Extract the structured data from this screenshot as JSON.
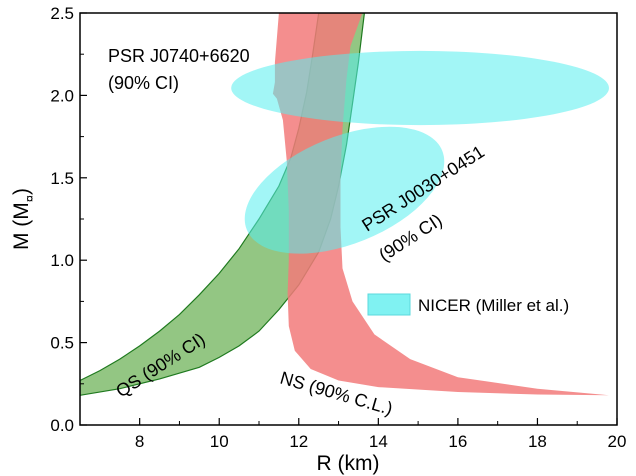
{
  "chart_data": {
    "type": "area",
    "xlabel": "R (km)",
    "ylabel_main": "M (M",
    "ylabel_sub": "¤",
    "ylabel_close": ")",
    "xlim": [
      6.5,
      20
    ],
    "ylim": [
      0,
      2.5
    ],
    "xticks": [
      8,
      10,
      12,
      14,
      16,
      18,
      20
    ],
    "yticks": [
      0.0,
      0.5,
      1.0,
      1.5,
      2.0,
      2.5
    ],
    "xtick_labels": [
      "8",
      "10",
      "12",
      "14",
      "16",
      "18",
      "20"
    ],
    "ytick_labels": [
      "0.0",
      "0.5",
      "1.0",
      "1.5",
      "2.0",
      "2.5"
    ],
    "grid": false,
    "legend": {
      "placement": "center-right",
      "label": "NICER (Miller et al.)"
    },
    "colors": {
      "ns": "#f27a7a",
      "qs": "#6fb35a",
      "qs_line": "#1f7a1f",
      "nicer": "#55eeee",
      "nicer_edge": "#5bd8dc",
      "qs_label": "#2e8b2e",
      "ns_label": "#f08080"
    },
    "series": [
      {
        "name": "QS (90% CI)",
        "role": "band",
        "left_edge": [
          [
            6.5,
            0.27
          ],
          [
            7.0,
            0.33
          ],
          [
            7.5,
            0.4
          ],
          [
            8.0,
            0.48
          ],
          [
            8.5,
            0.57
          ],
          [
            9.0,
            0.67
          ],
          [
            9.5,
            0.79
          ],
          [
            10.0,
            0.92
          ],
          [
            10.5,
            1.07
          ],
          [
            11.0,
            1.25
          ],
          [
            11.5,
            1.45
          ],
          [
            11.8,
            1.62
          ],
          [
            12.0,
            1.8
          ],
          [
            12.2,
            2.02
          ],
          [
            12.35,
            2.25
          ],
          [
            12.5,
            2.5
          ]
        ],
        "right_edge": [
          [
            6.5,
            0.18
          ],
          [
            7.5,
            0.22
          ],
          [
            8.5,
            0.28
          ],
          [
            9.5,
            0.35
          ],
          [
            10.0,
            0.41
          ],
          [
            10.5,
            0.48
          ],
          [
            11.0,
            0.57
          ],
          [
            11.5,
            0.7
          ],
          [
            12.0,
            0.85
          ],
          [
            12.5,
            1.05
          ],
          [
            12.8,
            1.25
          ],
          [
            13.0,
            1.45
          ],
          [
            13.2,
            1.7
          ],
          [
            13.35,
            1.95
          ],
          [
            13.5,
            2.2
          ],
          [
            13.65,
            2.5
          ]
        ]
      },
      {
        "name": "NS (90% C.L.)",
        "role": "band",
        "left_edge": [
          [
            11.35,
            2.01
          ],
          [
            11.45,
            1.98
          ],
          [
            11.6,
            1.85
          ],
          [
            11.7,
            1.6
          ],
          [
            11.75,
            1.3
          ],
          [
            11.75,
            1.0
          ],
          [
            11.72,
            0.8
          ],
          [
            11.75,
            0.6
          ],
          [
            11.9,
            0.45
          ],
          [
            12.3,
            0.34
          ],
          [
            13.0,
            0.27
          ],
          [
            14.0,
            0.23
          ],
          [
            16.0,
            0.2
          ],
          [
            18.0,
            0.185
          ],
          [
            19.8,
            0.18
          ]
        ],
        "right_edge": [
          [
            11.35,
            2.01
          ],
          [
            11.4,
            2.08
          ],
          [
            11.4,
            2.2
          ],
          [
            11.45,
            2.35
          ],
          [
            11.5,
            2.5
          ],
          [
            13.6,
            2.5
          ],
          [
            13.3,
            2.3
          ],
          [
            13.2,
            2.1
          ],
          [
            13.1,
            1.8
          ],
          [
            13.05,
            1.5
          ],
          [
            13.05,
            1.2
          ],
          [
            13.1,
            0.95
          ],
          [
            13.35,
            0.75
          ],
          [
            13.9,
            0.55
          ],
          [
            14.8,
            0.4
          ],
          [
            16.0,
            0.29
          ],
          [
            18.0,
            0.22
          ],
          [
            19.8,
            0.18
          ]
        ]
      },
      {
        "name": "PSR J0740+6620",
        "role": "credible-region",
        "center": [
          15.0,
          2.0
        ],
        "extent_x": [
          10.3,
          19.8
        ],
        "extent_y": [
          1.82,
          2.27
        ]
      },
      {
        "name": "PSR J0030+0451",
        "role": "credible-region",
        "center": [
          13.0,
          1.4
        ],
        "extent_x": [
          10.5,
          15.8
        ],
        "extent_y": [
          1.1,
          1.75
        ]
      }
    ],
    "annotations": {
      "psr0740_line1": "PSR J0740+6620",
      "psr0740_line2": "(90% CI)",
      "psr0030_line1": "PSR J0030+0451",
      "psr0030_line2": "(90% CI)",
      "qs_label": "QS (90% CI)",
      "ns_label": "NS (90% C.L.)"
    }
  }
}
